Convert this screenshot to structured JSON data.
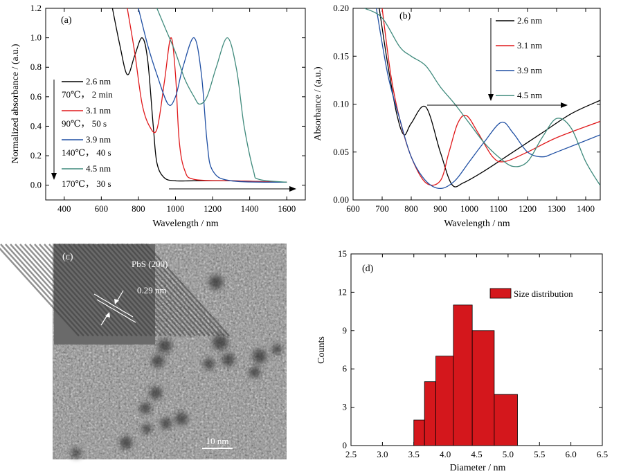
{
  "panels": {
    "a": {
      "label": "(a)",
      "xlabel": "Wavelength / nm",
      "ylabel": "Normalized absorbance / (a.u.)",
      "xlim": [
        300,
        1700
      ],
      "ylim": [
        -0.1,
        1.2
      ],
      "xticks": [
        "400",
        "600",
        "800",
        "1000",
        "1200",
        "1400",
        "1600"
      ],
      "yticks": [
        "0.0",
        "0.2",
        "0.4",
        "0.6",
        "0.8",
        "1.0",
        "1.2"
      ],
      "legend": [
        {
          "name": "2.6 nm",
          "condition": "70℃， 2 min"
        },
        {
          "name": "3.1 nm",
          "condition": "90℃， 50 s"
        },
        {
          "name": "3.9 nm",
          "condition": "140℃， 40 s"
        },
        {
          "name": "4.5 nm",
          "condition": "170℃， 30 s"
        }
      ]
    },
    "b": {
      "label": "(b)",
      "xlabel": "Wavelength / nm",
      "ylabel": "Absorbance / (a.u.)",
      "xlim": [
        600,
        1450
      ],
      "ylim": [
        0,
        0.2
      ],
      "xticks": [
        "600",
        "700",
        "800",
        "900",
        "1000",
        "1100",
        "1200",
        "1300",
        "1400"
      ],
      "yticks": [
        "0.00",
        "0.05",
        "0.10",
        "0.15",
        "0.20"
      ],
      "legend": [
        "2.6 nm",
        "3.1 nm",
        "3.9 nm",
        "4.5 nm"
      ]
    },
    "c": {
      "label": "(c)",
      "inset_label": "PbS (200)",
      "spacing_label": "0.29 nm",
      "scale_label": "10 nm"
    },
    "d": {
      "label": "(d)",
      "xlabel": "Diameter / nm",
      "ylabel": "Counts",
      "xticks": [
        "2.5",
        "3.0",
        "3.5",
        "4.0",
        "4.5",
        "5.0",
        "5.5",
        "6.0",
        "6.5"
      ],
      "yticks": [
        "0",
        "3",
        "6",
        "9",
        "12",
        "15"
      ],
      "legend": "Size distribution"
    }
  },
  "colors": {
    "s26": "#000000",
    "s31": "#e0191b",
    "s39": "#1f4fa3",
    "s45": "#3f8a7c",
    "bar": "#d4171c"
  },
  "chart_data": [
    {
      "type": "line",
      "panel": "a",
      "xlim": [
        300,
        1700
      ],
      "ylim": [
        -0.1,
        1.2
      ],
      "series": [
        {
          "name": "2.6 nm",
          "x": [
            660,
            700,
            740,
            780,
            820,
            850,
            880,
            900,
            940,
            1000,
            1100,
            1300,
            1600
          ],
          "y": [
            1.2,
            0.95,
            0.75,
            0.88,
            1.0,
            0.85,
            0.4,
            0.15,
            0.05,
            0.03,
            0.03,
            0.03,
            0.02
          ]
        },
        {
          "name": "3.1 nm",
          "x": [
            740,
            780,
            820,
            860,
            900,
            940,
            975,
            1000,
            1020,
            1050,
            1100,
            1300,
            1600
          ],
          "y": [
            1.2,
            0.9,
            0.55,
            0.4,
            0.38,
            0.7,
            1.0,
            0.75,
            0.3,
            0.1,
            0.04,
            0.03,
            0.02
          ]
        },
        {
          "name": "3.9 nm",
          "x": [
            800,
            850,
            900,
            960,
            1000,
            1040,
            1100,
            1140,
            1170,
            1200,
            1300,
            1600
          ],
          "y": [
            1.2,
            0.95,
            0.75,
            0.55,
            0.6,
            0.8,
            1.0,
            0.75,
            0.3,
            0.1,
            0.03,
            0.02
          ]
        },
        {
          "name": "4.5 nm",
          "x": [
            900,
            950,
            1000,
            1050,
            1100,
            1130,
            1170,
            1220,
            1280,
            1330,
            1370,
            1420,
            1450,
            1600
          ],
          "y": [
            1.2,
            1.05,
            0.9,
            0.72,
            0.6,
            0.55,
            0.6,
            0.8,
            1.0,
            0.78,
            0.4,
            0.1,
            0.04,
            0.02
          ]
        }
      ]
    },
    {
      "type": "line",
      "panel": "b",
      "xlim": [
        600,
        1450
      ],
      "ylim": [
        0,
        0.2
      ],
      "series": [
        {
          "name": "2.6 nm",
          "x": [
            690,
            720,
            750,
            775,
            800,
            850,
            900,
            940,
            980,
            1050,
            1150,
            1250,
            1350,
            1450
          ],
          "y": [
            0.2,
            0.14,
            0.09,
            0.068,
            0.08,
            0.097,
            0.05,
            0.016,
            0.018,
            0.03,
            0.05,
            0.07,
            0.09,
            0.104
          ]
        },
        {
          "name": "3.1 nm",
          "x": [
            700,
            730,
            760,
            800,
            850,
            900,
            930,
            960,
            990,
            1030,
            1080,
            1120,
            1200,
            1300,
            1450
          ],
          "y": [
            0.2,
            0.13,
            0.085,
            0.045,
            0.018,
            0.02,
            0.05,
            0.08,
            0.088,
            0.07,
            0.045,
            0.04,
            0.05,
            0.065,
            0.082
          ]
        },
        {
          "name": "3.9 nm",
          "x": [
            680,
            720,
            760,
            800,
            850,
            900,
            950,
            1000,
            1050,
            1110,
            1150,
            1200,
            1250,
            1300,
            1450
          ],
          "y": [
            0.2,
            0.13,
            0.085,
            0.045,
            0.02,
            0.012,
            0.02,
            0.04,
            0.06,
            0.081,
            0.07,
            0.05,
            0.045,
            0.05,
            0.068
          ]
        },
        {
          "name": "4.5 nm",
          "x": [
            640,
            700,
            760,
            800,
            850,
            900,
            950,
            1000,
            1050,
            1100,
            1150,
            1200,
            1250,
            1300,
            1350,
            1400,
            1450
          ],
          "y": [
            0.2,
            0.19,
            0.16,
            0.15,
            0.14,
            0.118,
            0.1,
            0.08,
            0.06,
            0.045,
            0.035,
            0.04,
            0.065,
            0.085,
            0.075,
            0.04,
            0.015
          ]
        }
      ]
    },
    {
      "type": "bar",
      "panel": "d",
      "xlim": [
        2.5,
        6.5
      ],
      "ylim": [
        0,
        15
      ],
      "bins": [
        {
          "from": 3.5,
          "to": 3.67,
          "value": 2
        },
        {
          "from": 3.67,
          "to": 3.85,
          "value": 5
        },
        {
          "from": 3.85,
          "to": 4.13,
          "value": 7
        },
        {
          "from": 4.13,
          "to": 4.43,
          "value": 11
        },
        {
          "from": 4.43,
          "to": 4.78,
          "value": 9
        },
        {
          "from": 4.78,
          "to": 5.15,
          "value": 4
        }
      ]
    }
  ]
}
